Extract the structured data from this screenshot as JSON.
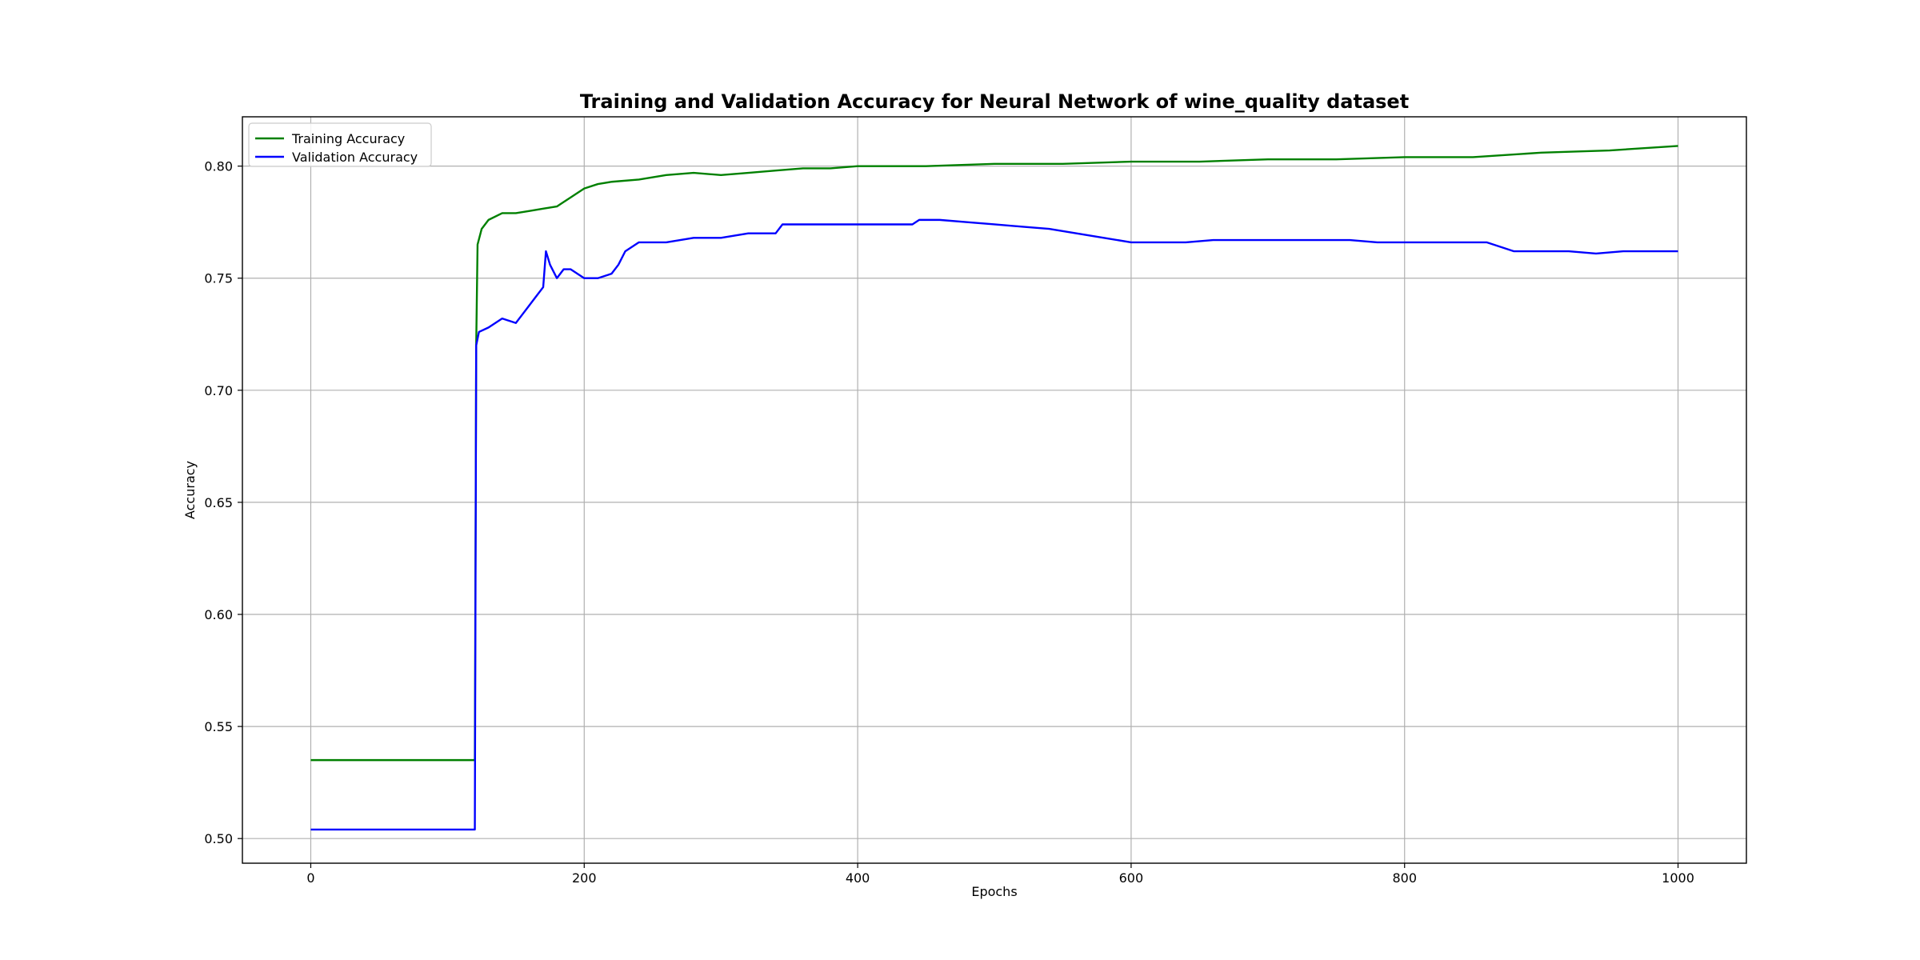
{
  "chart_data": {
    "type": "line",
    "title": "Training and Validation Accuracy for Neural Network of wine_quality dataset",
    "xlabel": "Epochs",
    "ylabel": "Accuracy",
    "xlim": [
      -50,
      1050
    ],
    "ylim": [
      0.489,
      0.822
    ],
    "x_ticks": [
      0,
      200,
      400,
      600,
      800,
      1000
    ],
    "x_tick_labels": [
      "0",
      "200",
      "400",
      "600",
      "800",
      "1000"
    ],
    "y_ticks": [
      0.5,
      0.55,
      0.6,
      0.65,
      0.7,
      0.75,
      0.8
    ],
    "y_tick_labels": [
      "0.50",
      "0.55",
      "0.60",
      "0.65",
      "0.70",
      "0.75",
      "0.80"
    ],
    "grid": true,
    "legend_position": "top-left",
    "series": [
      {
        "name": "Training Accuracy",
        "color": "#008000",
        "x": [
          0,
          120,
          121,
          122,
          125,
          130,
          140,
          150,
          160,
          170,
          180,
          190,
          200,
          210,
          220,
          240,
          260,
          280,
          300,
          320,
          340,
          360,
          380,
          400,
          450,
          500,
          550,
          600,
          650,
          700,
          750,
          800,
          850,
          900,
          950,
          1000
        ],
        "y": [
          0.535,
          0.535,
          0.72,
          0.765,
          0.772,
          0.776,
          0.779,
          0.779,
          0.78,
          0.781,
          0.782,
          0.786,
          0.79,
          0.792,
          0.793,
          0.794,
          0.796,
          0.797,
          0.796,
          0.797,
          0.798,
          0.799,
          0.799,
          0.8,
          0.8,
          0.801,
          0.801,
          0.802,
          0.802,
          0.803,
          0.803,
          0.804,
          0.804,
          0.806,
          0.807,
          0.809
        ]
      },
      {
        "name": "Validation Accuracy",
        "color": "#0000ff",
        "x": [
          0,
          120,
          121,
          123,
          130,
          140,
          150,
          155,
          160,
          165,
          170,
          172,
          175,
          180,
          185,
          190,
          200,
          210,
          220,
          225,
          230,
          240,
          260,
          280,
          300,
          320,
          340,
          345,
          360,
          380,
          400,
          440,
          445,
          460,
          480,
          500,
          520,
          540,
          560,
          580,
          600,
          620,
          640,
          660,
          680,
          700,
          720,
          740,
          760,
          780,
          800,
          820,
          840,
          860,
          870,
          880,
          900,
          920,
          940,
          960,
          980,
          1000
        ],
        "y": [
          0.504,
          0.504,
          0.72,
          0.726,
          0.728,
          0.732,
          0.73,
          0.734,
          0.738,
          0.742,
          0.746,
          0.762,
          0.756,
          0.75,
          0.754,
          0.754,
          0.75,
          0.75,
          0.752,
          0.756,
          0.762,
          0.766,
          0.766,
          0.768,
          0.768,
          0.77,
          0.77,
          0.774,
          0.774,
          0.774,
          0.774,
          0.774,
          0.776,
          0.776,
          0.775,
          0.774,
          0.773,
          0.772,
          0.77,
          0.768,
          0.766,
          0.766,
          0.766,
          0.767,
          0.767,
          0.767,
          0.767,
          0.767,
          0.767,
          0.766,
          0.766,
          0.766,
          0.766,
          0.766,
          0.764,
          0.762,
          0.762,
          0.762,
          0.761,
          0.762,
          0.762,
          0.762
        ]
      }
    ]
  }
}
